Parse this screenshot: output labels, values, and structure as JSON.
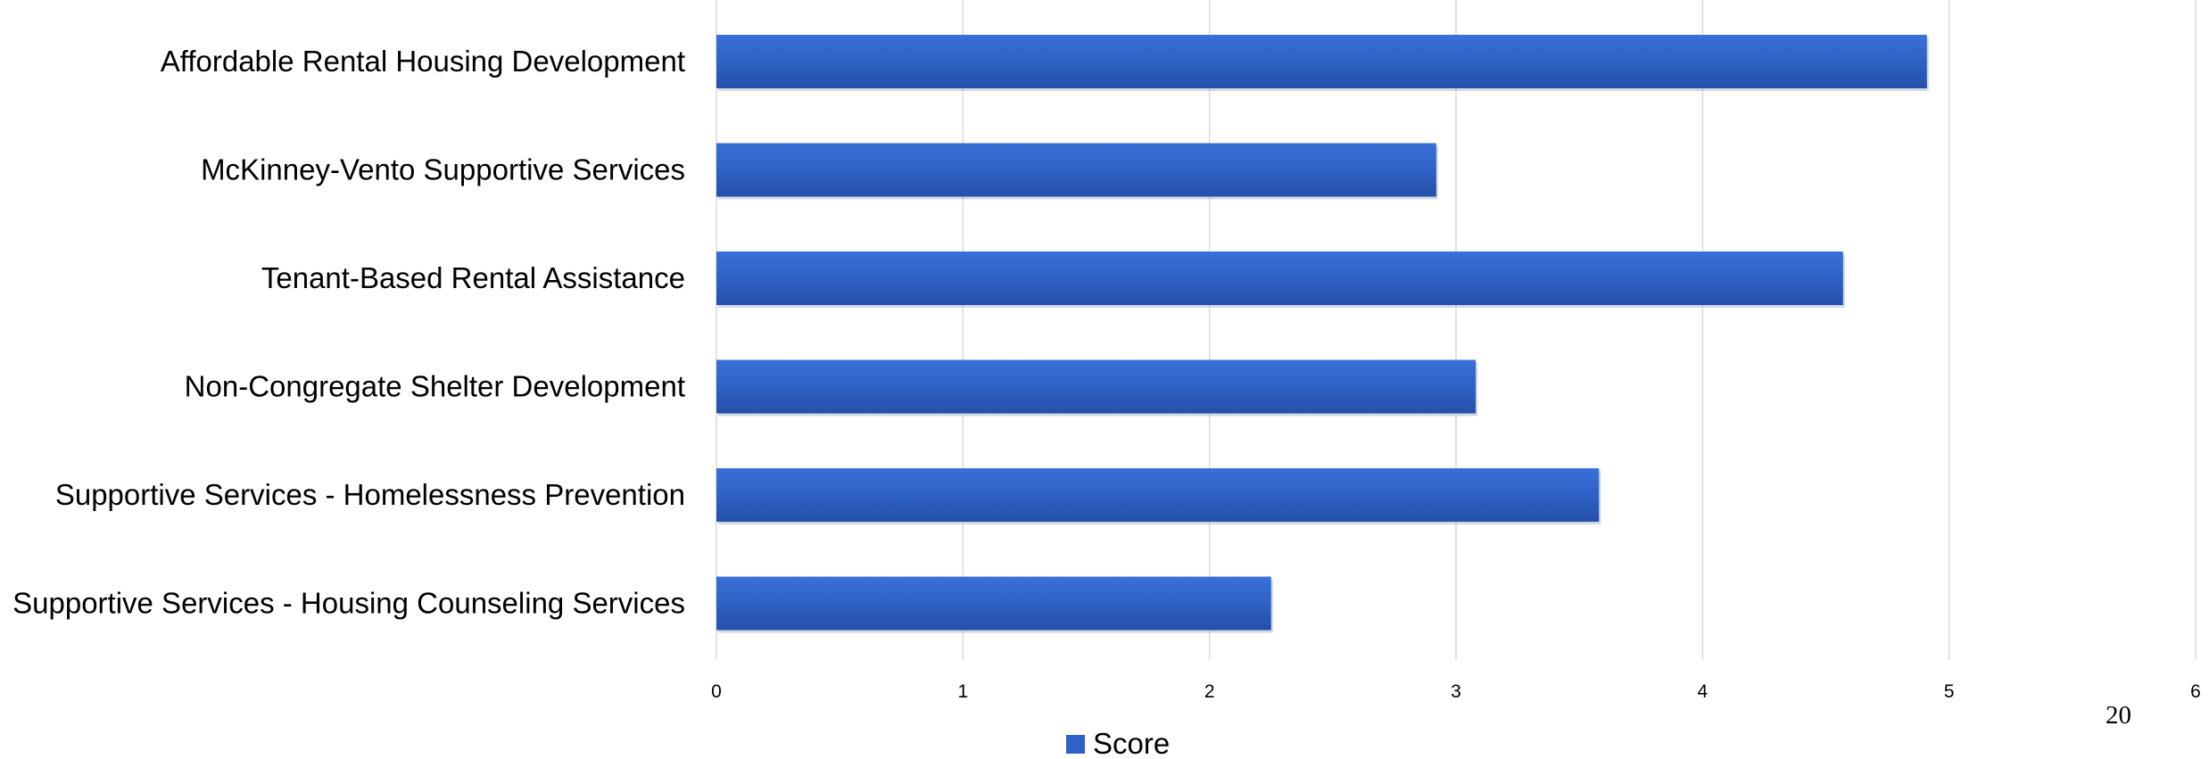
{
  "chart_data": {
    "type": "bar",
    "orientation": "horizontal",
    "categories": [
      "Affordable Rental Housing Development",
      "McKinney-Vento Supportive Services",
      "Tenant-Based Rental Assistance",
      "Non-Congregate Shelter Development",
      "Supportive Services - Homelessness Prevention",
      "Supportive Services - Housing Counseling Services"
    ],
    "series": [
      {
        "name": "Score",
        "values": [
          4.91,
          2.92,
          4.57,
          3.08,
          3.58,
          2.25
        ],
        "color": "#2f62c6"
      }
    ],
    "xlim": [
      0,
      6
    ],
    "x_ticks": [
      "0",
      "1",
      "2",
      "3",
      "4",
      "5",
      "6"
    ],
    "grid": true,
    "legend_position": "bottom",
    "title": "",
    "xlabel": "",
    "ylabel": ""
  },
  "page": {
    "number": "20"
  }
}
